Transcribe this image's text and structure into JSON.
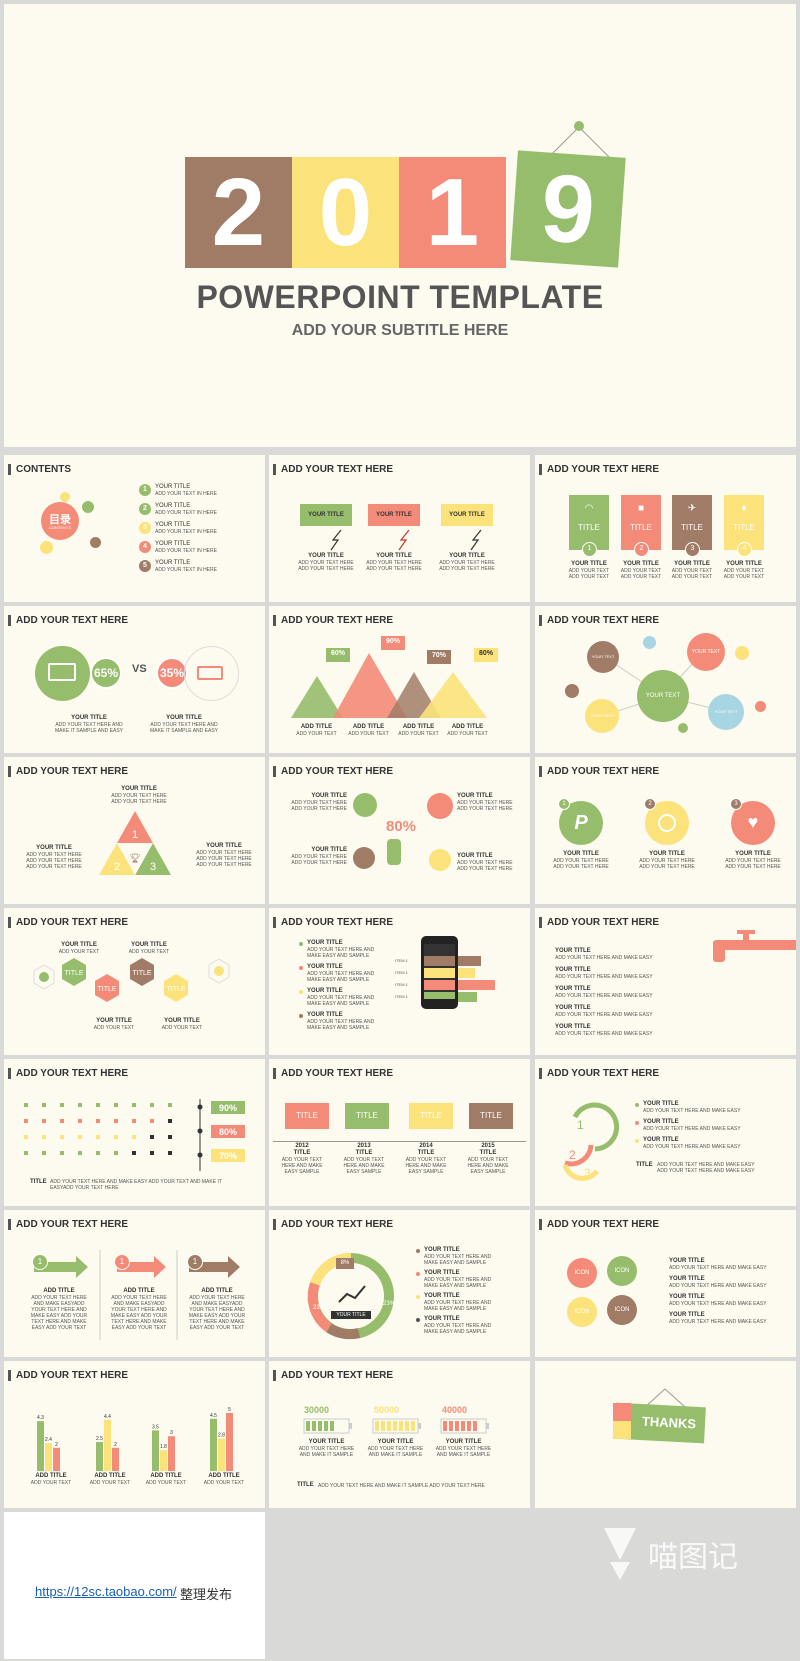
{
  "cover": {
    "digits": [
      "2",
      "0",
      "1",
      "9"
    ],
    "title": "POWERPOINT TEMPLATE",
    "subtitle": "ADD YOUR SUBTITLE HERE"
  },
  "colors": {
    "brown": "#a07c67",
    "yellow": "#fbe27a",
    "coral": "#f48b78",
    "green": "#96bd6b",
    "bg": "#fdfbef"
  },
  "slides": {
    "s1": {
      "title": "CONTENTS",
      "center": "目录",
      "center_sub": "CONTENTS",
      "items": [
        {
          "num": "1",
          "title": "YOUR TITLE",
          "text": "ADD YOUR TEXT IN HERE"
        },
        {
          "num": "2",
          "title": "YOUR TITLE",
          "text": "ADD YOUR TEXT IN HERE"
        },
        {
          "num": "3",
          "title": "YOUR TITLE",
          "text": "ADD YOUR TEXT IN HERE"
        },
        {
          "num": "4",
          "title": "YOUR TITLE",
          "text": "ADD YOUR TEXT IN HERE"
        },
        {
          "num": "5",
          "title": "YOUR TITLE",
          "text": "ADD YOUR TEXT IN HERE"
        }
      ]
    },
    "s2": {
      "title": "ADD YOUR TEXT HERE",
      "box": "YOUR TITLE",
      "cols": [
        {
          "title": "YOUR TITLE",
          "l1": "ADD YOUR TEXT HERE",
          "l2": "ADD YOUR TEXT HERE"
        },
        {
          "title": "YOUR TITLE",
          "l1": "ADD YOUR TEXT HERE",
          "l2": "ADD YOUR TEXT HERE"
        },
        {
          "title": "YOUR TITLE",
          "l1": "ADD YOUR TEXT HERE",
          "l2": "ADD YOUR TEXT HERE"
        }
      ]
    },
    "s3": {
      "title": "ADD YOUR TEXT HERE",
      "label": "TITLE",
      "nums": [
        "1",
        "2",
        "3",
        "4"
      ],
      "col_title": "YOUR TITLE",
      "l1": "ADD YOUR TEXT",
      "l2": "ADD YOUR TEXT"
    },
    "s4": {
      "title": "ADD YOUR TEXT HERE",
      "left_pct": "65%",
      "vs": "VS",
      "right_pct": "35%",
      "c1": {
        "title": "YOUR TITLE",
        "l1": "ADD YOUR TEXT HERE AND",
        "l2": "MAKE IT SAMPLE AND EASY"
      },
      "c2": {
        "title": "YOUR TITLE",
        "l1": "ADD YOUR TEXT HERE AND",
        "l2": "MAKE IT SAMPLE AND EASY"
      }
    },
    "s5": {
      "title": "ADD YOUR TEXT HERE",
      "pcts": [
        "60%",
        "90%",
        "70%",
        "80%"
      ],
      "labels": [
        "ADD TITLE",
        "ADD TITLE",
        "ADD TITLE",
        "ADD TITLE"
      ],
      "sub": "ADD YOUR TEXT"
    },
    "s6": {
      "title": "ADD YOUR TEXT HERE",
      "center": "YOUR TEXT",
      "small": "YOUR TEXT"
    },
    "s7": {
      "title": "ADD YOUR TEXT HERE",
      "top_title": "YOUR TITLE",
      "nums": [
        "1",
        "2",
        "3"
      ],
      "lbl": "YOUR TITLE",
      "text": "ADD YOUR TEXT HERE"
    },
    "s8": {
      "title": "ADD YOUR TEXT HERE",
      "pct": "80%",
      "lbl": "YOUR TITLE",
      "text": "ADD YOUR TEXT HERE"
    },
    "s9": {
      "title": "ADD YOUR TEXT HERE",
      "nums": [
        "1",
        "2",
        "3"
      ],
      "lbl": "YOUR TITLE",
      "text": "ADD YOUR TEXT HERE"
    },
    "s10": {
      "title": "ADD YOUR TEXT HERE",
      "hex": "TITLE",
      "lbl": "YOUR TITLE",
      "text": "ADD YOUR TEXT"
    },
    "s11": {
      "title": "ADD YOUR TEXT HERE",
      "lbl": "YOUR TITLE",
      "l1": "ADD YOUR TEXT HERE AND",
      "l2": "MAKE EASY AND SAMPLE",
      "item": "ITEM 1"
    },
    "s12": {
      "title": "ADD YOUR TEXT HERE",
      "lbl": "YOUR TITLE",
      "text": "ADD YOUR TEXT HERE AND MAKE EASY"
    },
    "s13": {
      "title": "ADD YOUR TEXT HERE",
      "pcts": [
        "90%",
        "80%",
        "70%"
      ],
      "foot_title": "TITLE",
      "foot_l1": "ADD YOUR TEXT HERE AND MAKE EASY ADD YOUR TEXT AND MAKE IT",
      "foot_l2": "EASYADD YOUR TEXT HERE"
    },
    "s14": {
      "title": "ADD YOUR TEXT HERE",
      "box": "TITLE",
      "years": [
        "2012",
        "2013",
        "2014",
        "2015"
      ],
      "lbl": "TITLE",
      "l1": "ADD YOUR TEXT",
      "l2": "HERE AND MAKE",
      "l3": "EASY  SAMPLE"
    },
    "s15": {
      "title": "ADD YOUR TEXT HERE",
      "lbl": "YOUR TITLE",
      "text": "ADD YOUR TEXT HERE AND MAKE EASY",
      "foot_title": "TITLE",
      "foot_text": "ADD YOUR TEXT HERE AND MAKE EASY"
    },
    "s16": {
      "title": "ADD YOUR TEXT HERE",
      "num": "1",
      "lbl": "ADD TITLE",
      "l1": "ADD YOUR TEXT HERE",
      "l2": "AND MAKE EASYADD",
      "l3": "YOUR TEXT HERE AND",
      "l4": "MAKE EASY ADD YOUR",
      "l5": "TEXT HERE AND MAKE",
      "l6": "EASY ADD YOUR TEXT"
    },
    "s17": {
      "title": "ADD YOUR TEXT HERE",
      "p1": "8%",
      "p2": "23%",
      "p3": "23%",
      "center": "YOUR TITLE",
      "lbl": "YOUR TITLE",
      "l1": "ADD YOUR TEXT HERE AND",
      "l2": "MAKE EASY AND SAMPLE"
    },
    "s18": {
      "title": "ADD YOUR TEXT HERE",
      "icon": "ICON",
      "lbl": "YOUR TITLE",
      "text": "ADD YOUR TEXT HERE AND MAKE EASY"
    },
    "s19": {
      "title": "ADD YOUR TEXT HERE",
      "lbl": "ADD TITLE",
      "sub": "ADD YOUR TEXT"
    },
    "s20": {
      "title": "ADD YOUR TEXT HERE",
      "nums": [
        "30000",
        "50000",
        "40000"
      ],
      "lbl": "YOUR TITLE",
      "l1": "ADD YOUR TEXT HERE",
      "l2": "AND MAKE IT SAMPLE",
      "foot_title": "TITLE",
      "foot_text": "ADD YOUR TEXT HERE AND MAKE IT SAMPLE ADD YOUR TEXT HERE"
    },
    "s21": {
      "thanks": "THANKS"
    }
  },
  "chart_data": {
    "type": "bar",
    "categories": [
      "ADD TITLE",
      "ADD TITLE",
      "ADD TITLE",
      "ADD TITLE"
    ],
    "series": [
      {
        "values": [
          4.3,
          2.5,
          3.5,
          4.5
        ]
      },
      {
        "values": [
          2.4,
          4.4,
          1.8,
          2.8
        ]
      },
      {
        "values": [
          2,
          2,
          3,
          5
        ]
      }
    ],
    "colors": [
      "#96bd6b",
      "#fbe27a",
      "#f48b78"
    ]
  },
  "footer": {
    "url": "https://12sc.taobao.com/",
    "note": "整理发布",
    "watermark": "喵图记"
  }
}
